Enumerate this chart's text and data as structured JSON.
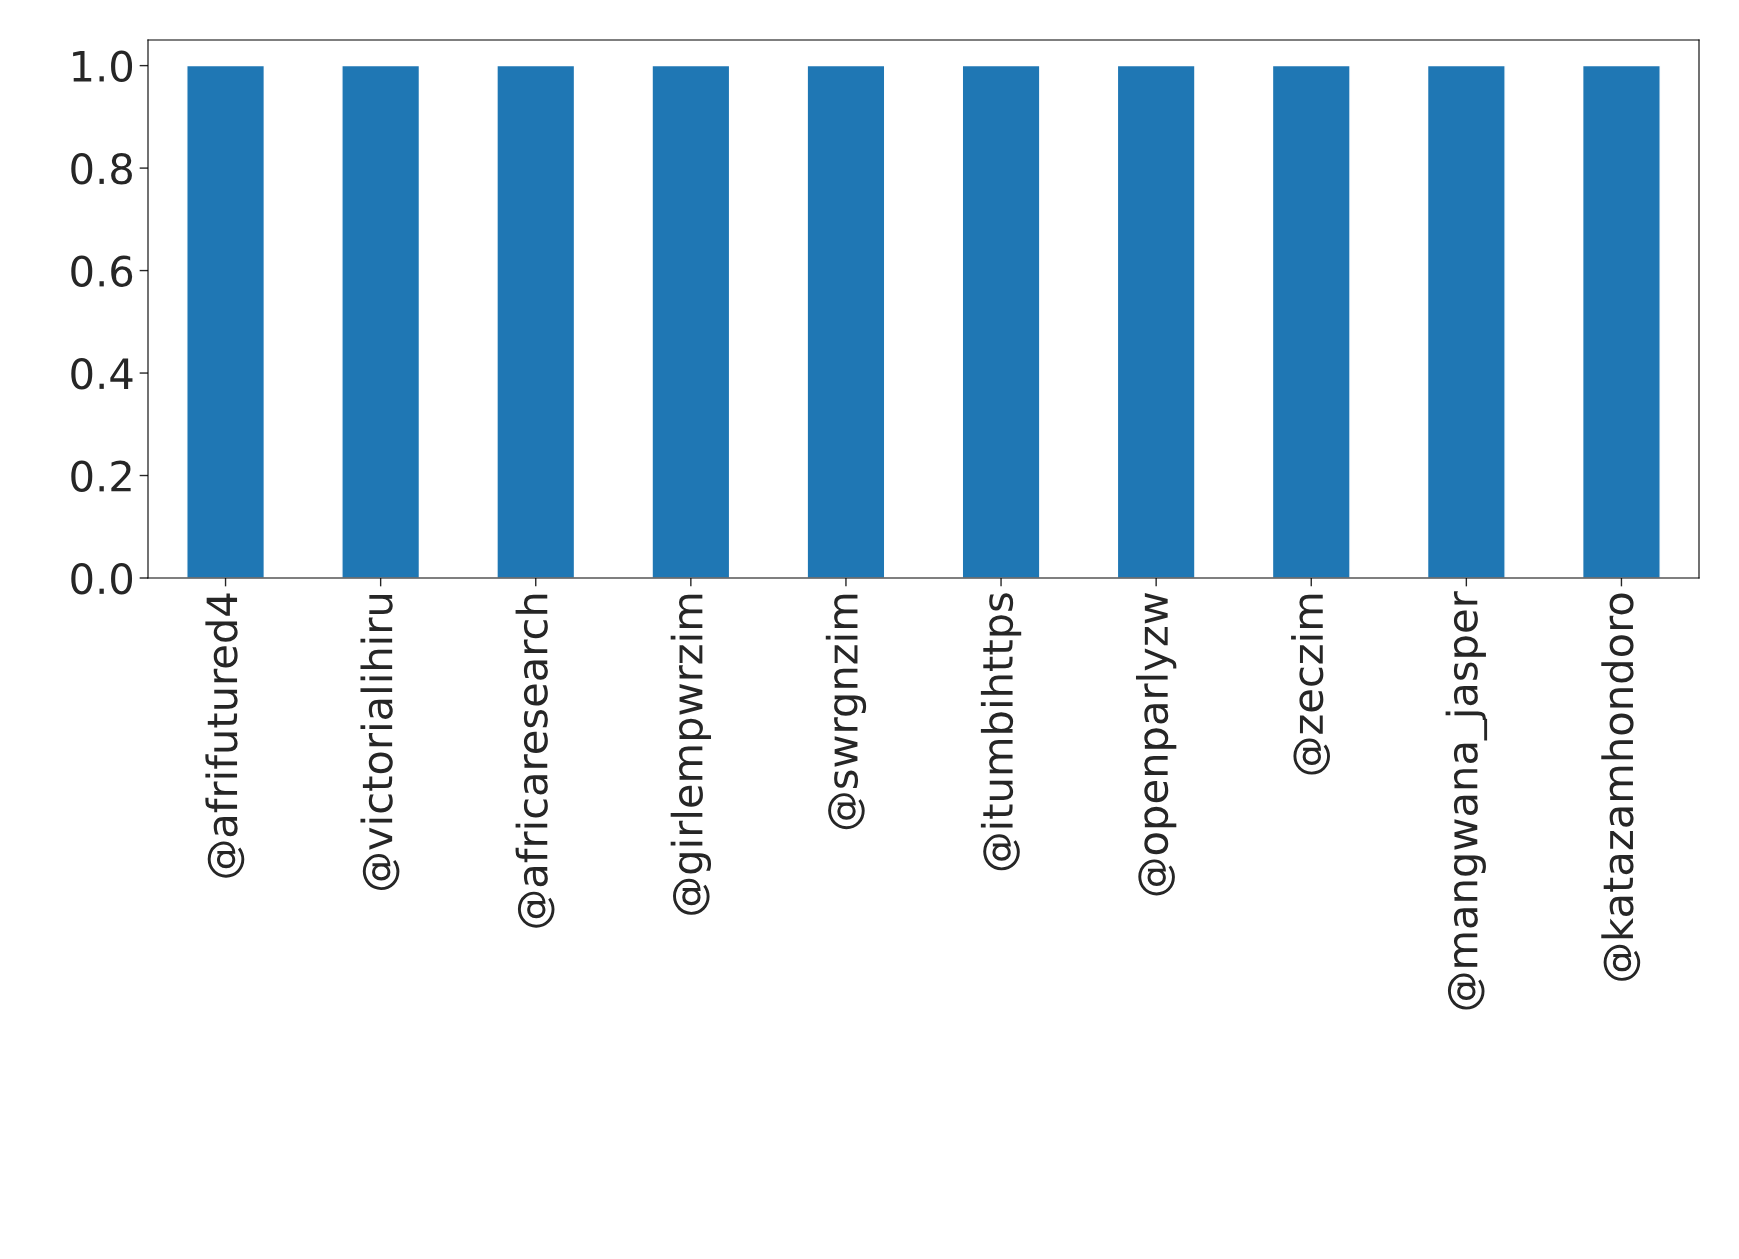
{
  "chart_data": {
    "type": "bar",
    "categories": [
      "@afrifutured4",
      "@victorialihiru",
      "@africaresearch",
      "@girlempwrzim",
      "@swrgnzim",
      "@itumbihttps",
      "@openparlyzw",
      "@zeczim",
      "@mangwana_jasper",
      "@katazamhondoro"
    ],
    "values": [
      1.0,
      1.0,
      1.0,
      1.0,
      1.0,
      1.0,
      1.0,
      1.0,
      1.0,
      1.0
    ],
    "color": "#1f77b4",
    "ylim": [
      0,
      1.05
    ],
    "yticks": [
      {
        "value": 0,
        "label": "0.0"
      },
      {
        "value": 0.2,
        "label": "0.2"
      },
      {
        "value": 0.4,
        "label": "0.4"
      },
      {
        "value": 0.6,
        "label": "0.6"
      },
      {
        "value": 0.8,
        "label": "0.8"
      },
      {
        "value": 1.0,
        "label": "1.0"
      }
    ],
    "grid": false,
    "legend": false
  }
}
